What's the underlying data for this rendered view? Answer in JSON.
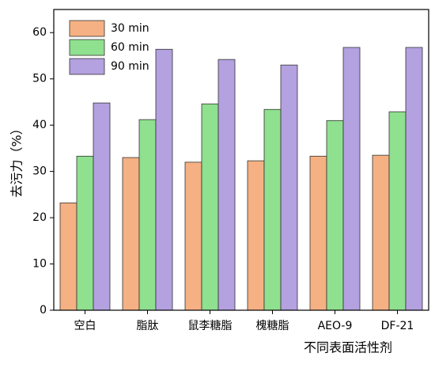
{
  "chart_data": {
    "type": "bar",
    "x_label": "不同表面活性剂",
    "y_label": "去污力（%）",
    "categories": [
      "空白",
      "脂肽",
      "鼠李糖脂",
      "槐糖脂",
      "AEO-9",
      "DF-21"
    ],
    "series": [
      {
        "name": "30 min",
        "color": "#f5b183",
        "values": [
          23.2,
          33.0,
          32.0,
          32.3,
          33.3,
          33.5
        ]
      },
      {
        "name": "60 min",
        "color": "#8fe08f",
        "values": [
          33.3,
          41.2,
          44.6,
          43.4,
          41.0,
          42.9
        ]
      },
      {
        "name": "90 min",
        "color": "#b3a1e0",
        "values": [
          44.8,
          56.4,
          54.2,
          53.0,
          56.8,
          56.8
        ]
      }
    ],
    "ylim": [
      0,
      65
    ],
    "yticks": [
      0,
      10,
      20,
      30,
      40,
      50,
      60
    ],
    "legend": "upper-left"
  }
}
